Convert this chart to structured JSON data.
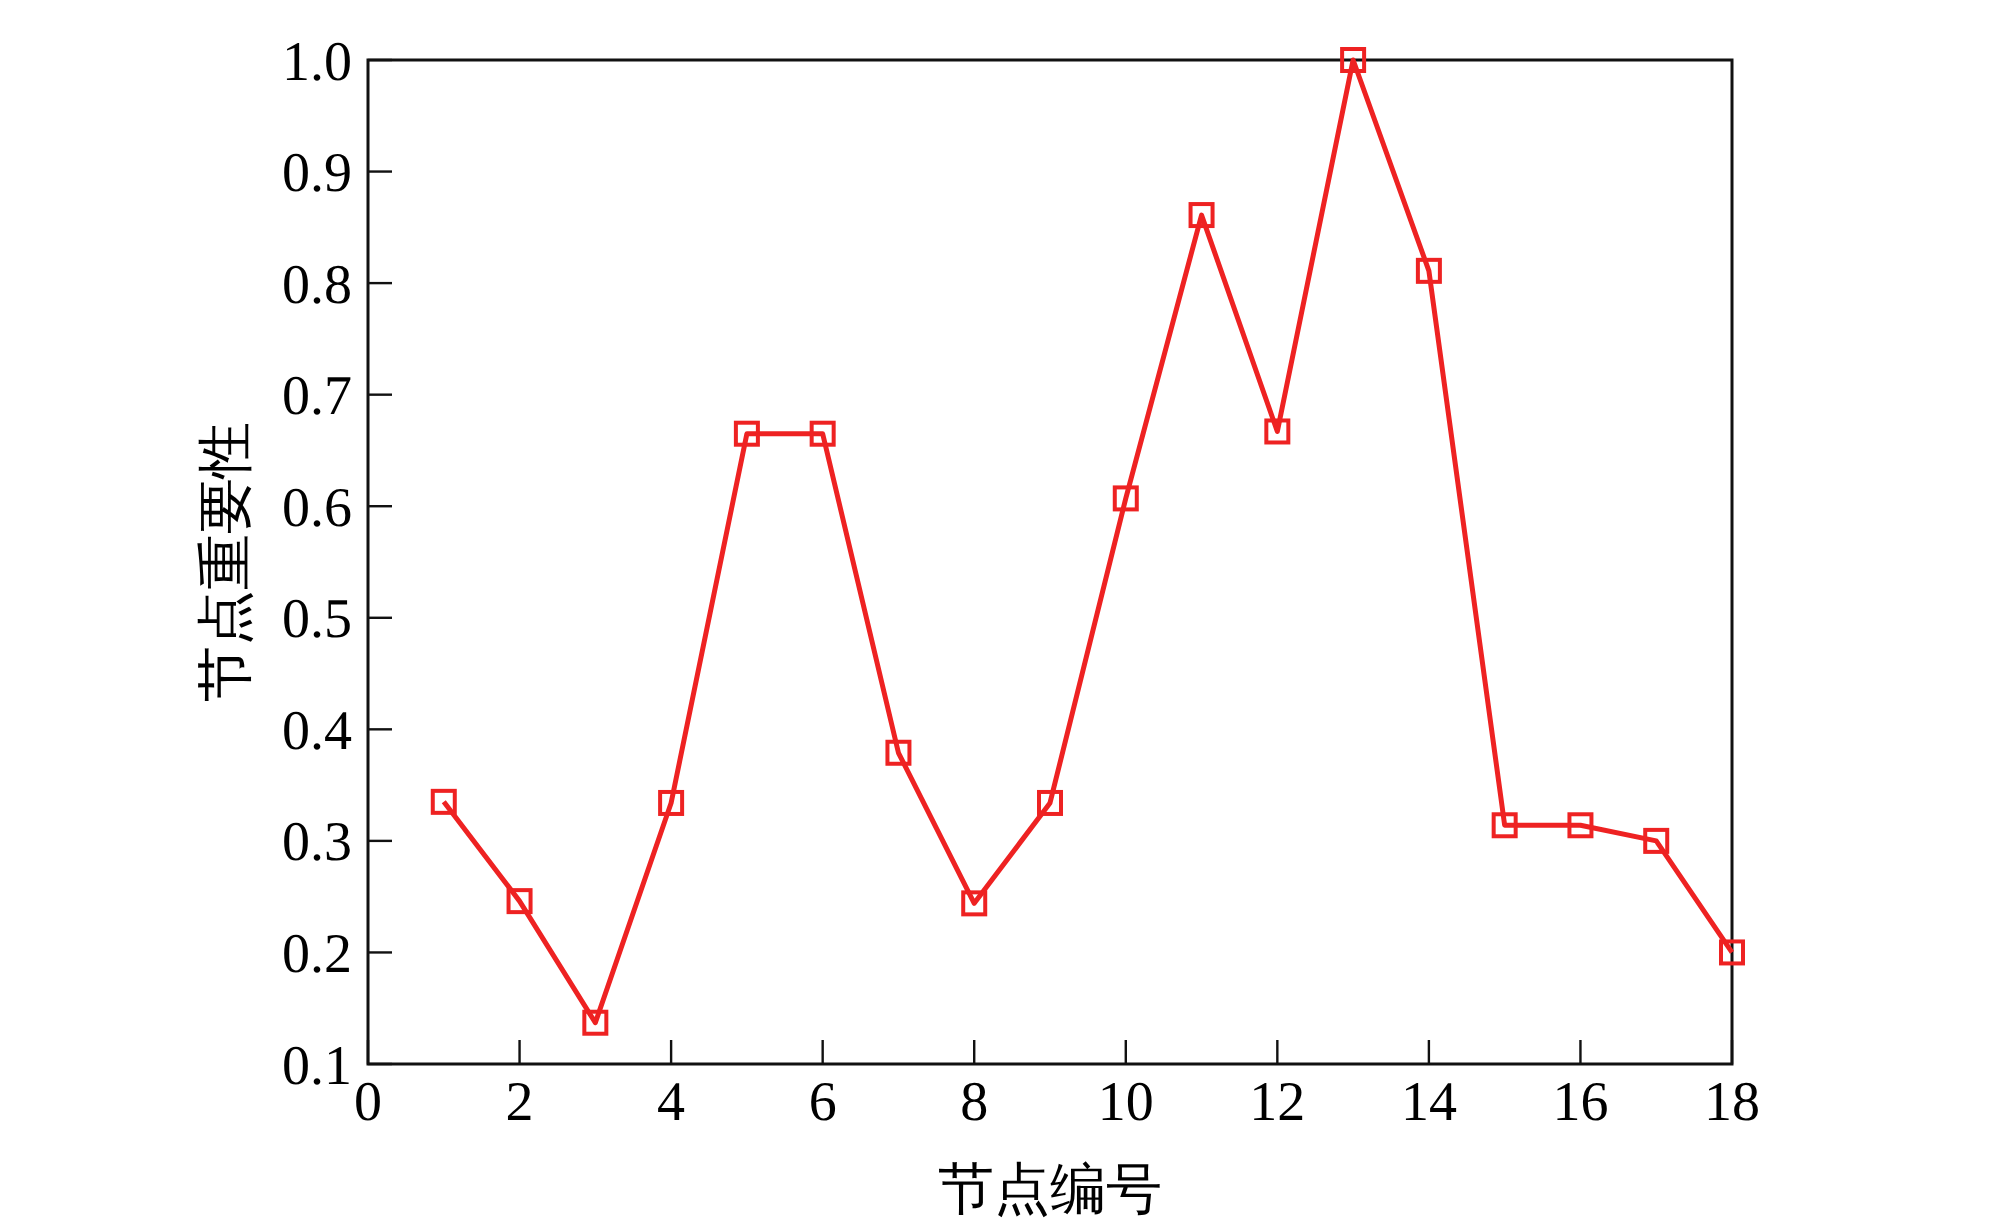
{
  "chart_data": {
    "type": "line",
    "xlabel": "节点编号",
    "ylabel": "节点重要性",
    "x": [
      1,
      2,
      3,
      4,
      5,
      6,
      7,
      8,
      9,
      10,
      11,
      12,
      13,
      14,
      15,
      16,
      17,
      18
    ],
    "series": [
      {
        "color": "#ee2222",
        "values": [
          0.335,
          0.246,
          0.137,
          0.334,
          0.665,
          0.665,
          0.379,
          0.244,
          0.334,
          0.607,
          0.861,
          0.667,
          1.0,
          0.811,
          0.314,
          0.314,
          0.3,
          0.2
        ]
      }
    ],
    "xlim": [
      0,
      18
    ],
    "xticks": [
      0,
      2,
      4,
      6,
      8,
      10,
      12,
      14,
      16,
      18
    ],
    "ylim": [
      0.1,
      1.0
    ],
    "yticks": [
      {
        "value": 0.1,
        "label": "0.1"
      },
      {
        "value": 0.2,
        "label": "0.2"
      },
      {
        "value": 0.3,
        "label": "0.3"
      },
      {
        "value": 0.4,
        "label": "0.4"
      },
      {
        "value": 0.5,
        "label": "0.5"
      },
      {
        "value": 0.6,
        "label": "0.6"
      },
      {
        "value": 0.7,
        "label": "0.7"
      },
      {
        "value": 0.8,
        "label": "0.8"
      },
      {
        "value": 0.9,
        "label": "0.9"
      },
      {
        "value": 1.0,
        "label": "1.0"
      }
    ],
    "marker": "square",
    "line_style": "solid",
    "grid": false
  }
}
